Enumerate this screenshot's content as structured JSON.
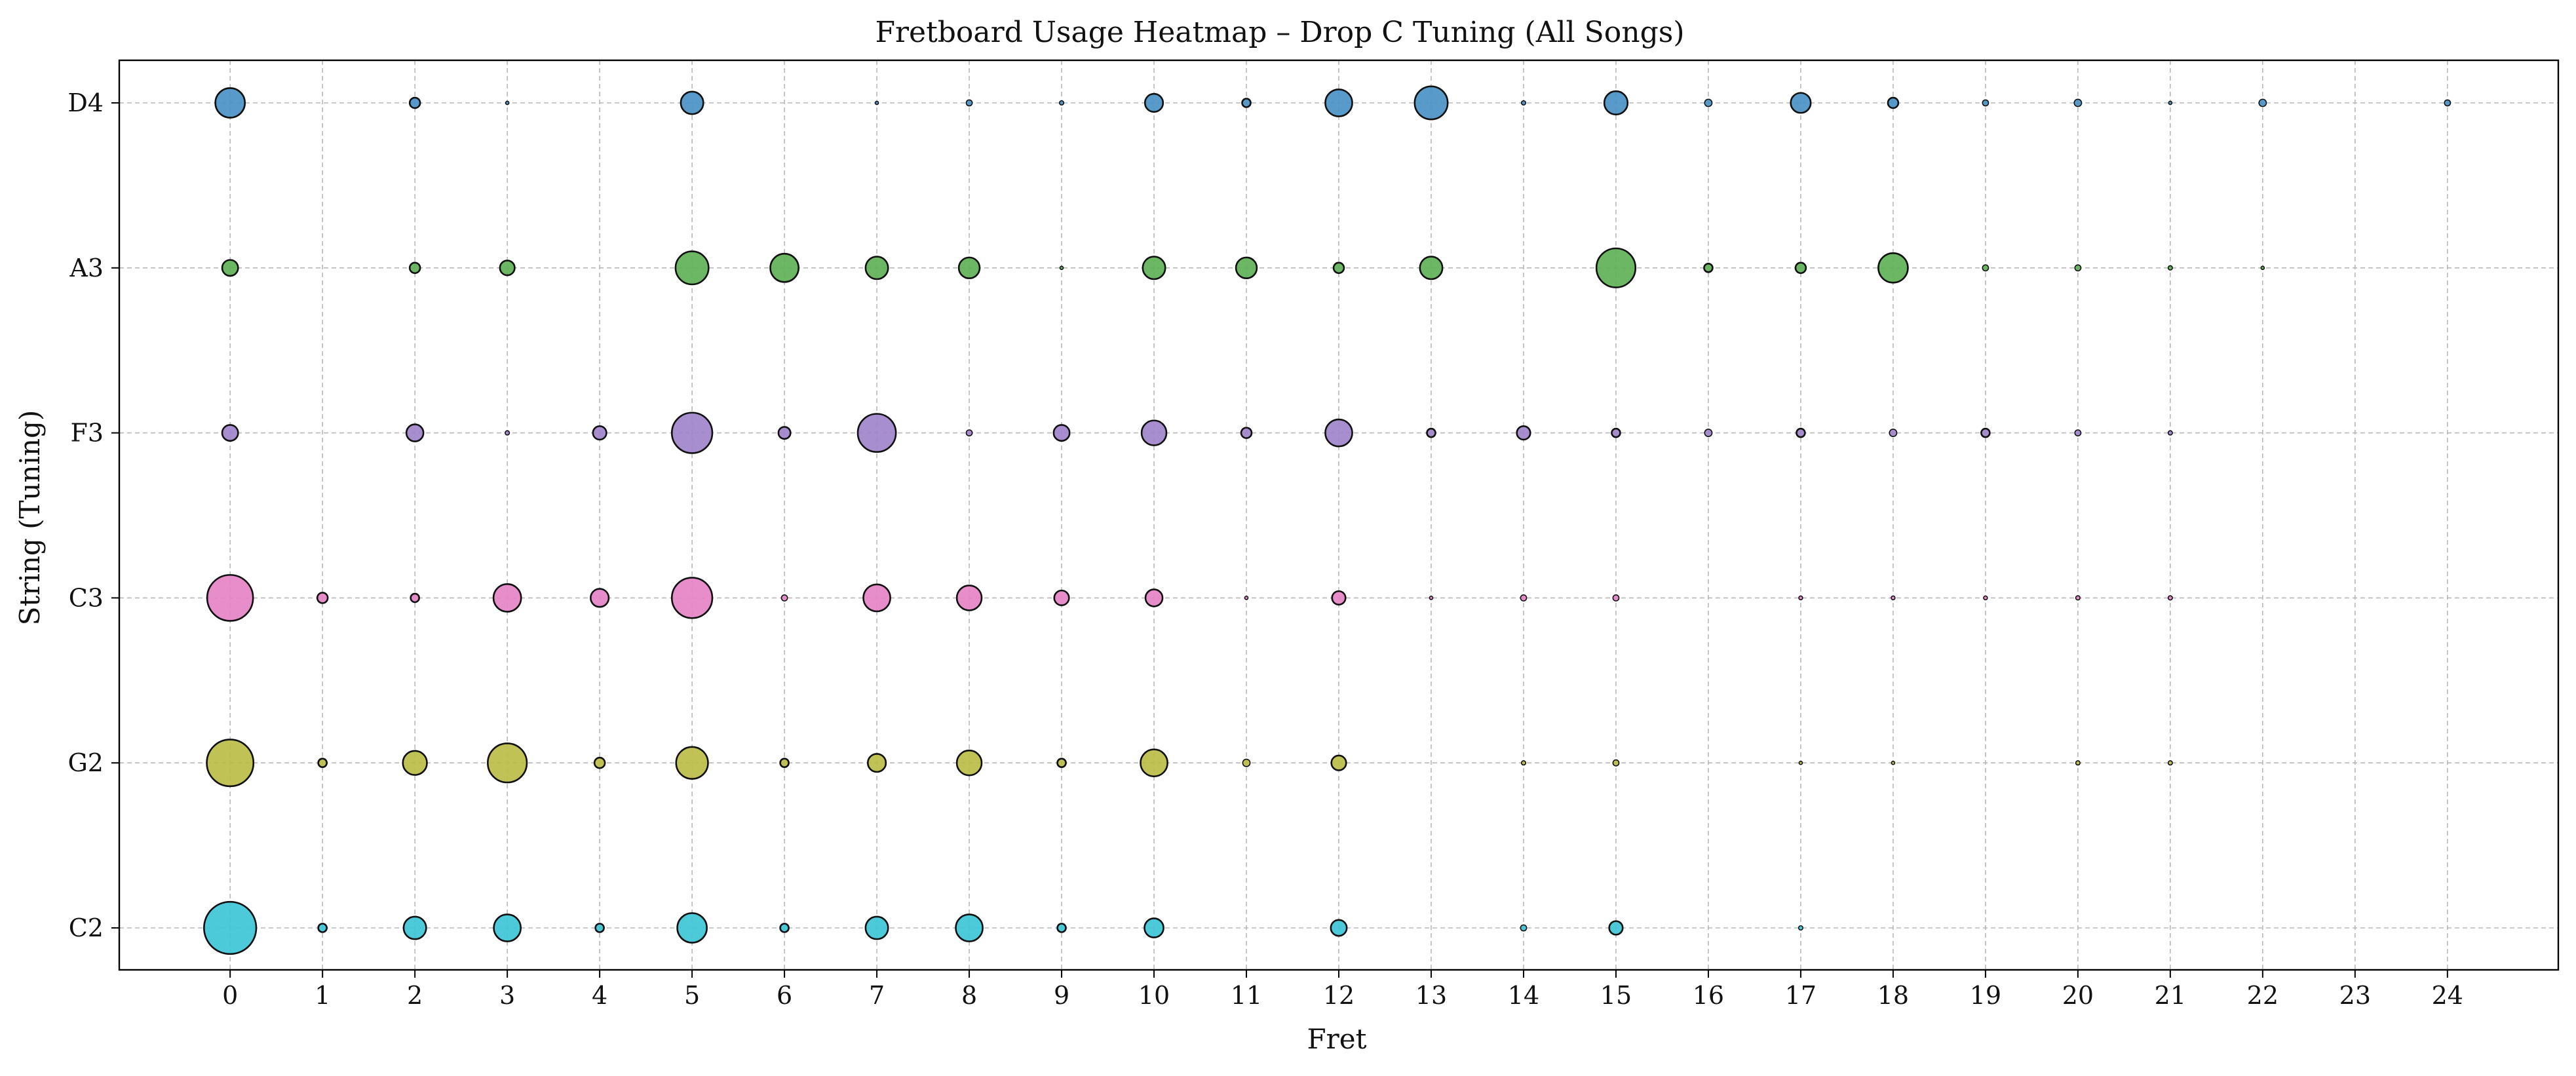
{
  "chart_data": {
    "type": "scatter",
    "title": "Fretboard Usage Heatmap – Drop C Tuning (All Songs)",
    "xlabel": "Fret",
    "ylabel": "String (Tuning)",
    "x_ticks": [
      0,
      1,
      2,
      3,
      4,
      5,
      6,
      7,
      8,
      9,
      10,
      11,
      12,
      13,
      14,
      15,
      16,
      17,
      18,
      19,
      20,
      21,
      22,
      23,
      24
    ],
    "xlim": [
      -1.2,
      25.2
    ],
    "y_categories": [
      "C2",
      "G2",
      "C3",
      "F3",
      "A3",
      "D4"
    ],
    "grid": true,
    "size_note_encoding": "marker area proportional to usage count",
    "series": [
      {
        "string": "C2",
        "color": "#3ec6d6",
        "points": [
          [
            0,
            75
          ],
          [
            1,
            2
          ],
          [
            2,
            14
          ],
          [
            3,
            20
          ],
          [
            4,
            2
          ],
          [
            5,
            24
          ],
          [
            6,
            2
          ],
          [
            7,
            14
          ],
          [
            8,
            20
          ],
          [
            9,
            2
          ],
          [
            10,
            10
          ],
          [
            12,
            7
          ],
          [
            14,
            1
          ],
          [
            15,
            5
          ],
          [
            17,
            0.5
          ]
        ]
      },
      {
        "string": "G2",
        "color": "#bcbd48",
        "points": [
          [
            0,
            60
          ],
          [
            1,
            2
          ],
          [
            2,
            16
          ],
          [
            3,
            42
          ],
          [
            4,
            3
          ],
          [
            5,
            28
          ],
          [
            6,
            2
          ],
          [
            7,
            9
          ],
          [
            8,
            17
          ],
          [
            9,
            2
          ],
          [
            10,
            20
          ],
          [
            11,
            1.5
          ],
          [
            12,
            6
          ],
          [
            14,
            0.5
          ],
          [
            15,
            1
          ],
          [
            17,
            0.3
          ],
          [
            18,
            0.3
          ],
          [
            20,
            0.5
          ],
          [
            21,
            0.5
          ]
        ]
      },
      {
        "string": "C3",
        "color": "#e583c4",
        "points": [
          [
            0,
            58
          ],
          [
            1,
            3
          ],
          [
            2,
            2
          ],
          [
            3,
            21
          ],
          [
            4,
            9
          ],
          [
            5,
            45
          ],
          [
            6,
            1
          ],
          [
            7,
            20
          ],
          [
            8,
            17
          ],
          [
            9,
            6
          ],
          [
            10,
            8
          ],
          [
            11,
            0.3
          ],
          [
            12,
            5
          ],
          [
            13,
            0.3
          ],
          [
            14,
            1
          ],
          [
            15,
            1
          ],
          [
            17,
            0.4
          ],
          [
            18,
            0.4
          ],
          [
            19,
            0.4
          ],
          [
            20,
            0.5
          ],
          [
            21,
            0.5
          ]
        ]
      },
      {
        "string": "F3",
        "color": "#a084cb",
        "points": [
          [
            0,
            7
          ],
          [
            2,
            8
          ],
          [
            3,
            0.5
          ],
          [
            4,
            5
          ],
          [
            5,
            45
          ],
          [
            6,
            4
          ],
          [
            7,
            40
          ],
          [
            8,
            1
          ],
          [
            9,
            7
          ],
          [
            10,
            17
          ],
          [
            11,
            3
          ],
          [
            12,
            20
          ],
          [
            13,
            2
          ],
          [
            14,
            5
          ],
          [
            15,
            2
          ],
          [
            16,
            1.5
          ],
          [
            17,
            2
          ],
          [
            18,
            1.5
          ],
          [
            19,
            2
          ],
          [
            20,
            1
          ],
          [
            21,
            0.5
          ]
        ]
      },
      {
        "string": "A3",
        "color": "#5fb157",
        "points": [
          [
            0,
            7
          ],
          [
            2,
            3
          ],
          [
            3,
            6
          ],
          [
            5,
            30
          ],
          [
            6,
            22
          ],
          [
            7,
            14
          ],
          [
            8,
            12
          ],
          [
            9,
            0.3
          ],
          [
            10,
            14
          ],
          [
            11,
            12
          ],
          [
            12,
            3
          ],
          [
            13,
            14
          ],
          [
            15,
            42
          ],
          [
            16,
            2
          ],
          [
            17,
            3
          ],
          [
            18,
            24
          ],
          [
            19,
            1
          ],
          [
            20,
            1
          ],
          [
            21,
            0.5
          ],
          [
            22,
            0.3
          ]
        ]
      },
      {
        "string": "D4",
        "color": "#4a93c6",
        "points": [
          [
            0,
            24
          ],
          [
            2,
            3
          ],
          [
            3,
            0.3
          ],
          [
            5,
            14
          ],
          [
            7,
            0.2
          ],
          [
            8,
            1
          ],
          [
            9,
            0.5
          ],
          [
            10,
            9
          ],
          [
            11,
            2
          ],
          [
            12,
            20
          ],
          [
            13,
            30
          ],
          [
            14,
            0.5
          ],
          [
            15,
            15
          ],
          [
            16,
            1.5
          ],
          [
            17,
            11
          ],
          [
            18,
            3
          ],
          [
            19,
            1
          ],
          [
            20,
            1.5
          ],
          [
            21,
            0.3
          ],
          [
            22,
            1.5
          ],
          [
            24,
            1
          ]
        ]
      }
    ]
  }
}
